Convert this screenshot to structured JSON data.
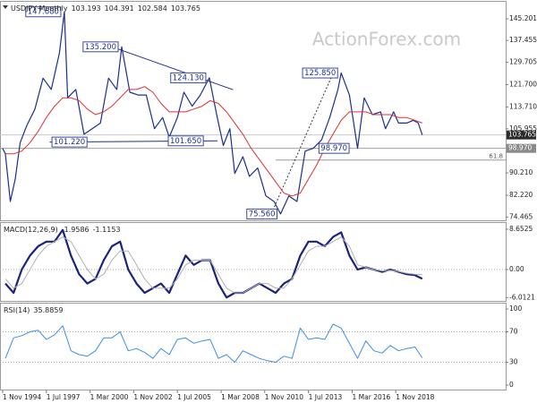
{
  "chart_data": [
    {
      "type": "line",
      "title": "USDJPY Monthly",
      "readout": [
        103.193,
        104.391,
        102.584,
        103.765
      ],
      "watermark": "ActionForex.com",
      "xlim": [
        1994.67,
        2025.54
      ],
      "ylim": [
        73.3,
        150.95
      ],
      "yticks": [
        145.201,
        137.455,
        129.705,
        {
          "value": 121.7,
          "label": "121.700"
        },
        {
          "value": 113.71,
          "label": "113.710"
        },
        105.955,
        {
          "value": 90.21,
          "label": "90.210"
        },
        {
          "value": 82.22,
          "label": "82.220"
        },
        74.465
      ],
      "series": [
        {
          "color": "#1c2f8c",
          "width": 1.2,
          "x": [
            1994.83,
            1995.0,
            1995.3,
            1995.6,
            1995.9,
            1996.3,
            1996.8,
            1997.3,
            1997.8,
            1998.3,
            1998.6,
            1998.8,
            1999.3,
            1999.8,
            2000.3,
            2000.8,
            2001.3,
            2001.8,
            2002.1,
            2002.6,
            2003.1,
            2003.6,
            2004.1,
            2004.6,
            2005.0,
            2005.5,
            2005.9,
            2006.4,
            2006.9,
            2007.45,
            2007.9,
            2008.3,
            2008.7,
            2009.0,
            2009.5,
            2009.9,
            2010.4,
            2010.9,
            2011.4,
            2011.8,
            2012.3,
            2012.8,
            2013.3,
            2013.8,
            2014.3,
            2014.8,
            2015.3,
            2015.5,
            2016.0,
            2016.5,
            2016.9,
            2017.4,
            2017.9,
            2018.2,
            2018.7,
            2019.0,
            2019.5,
            2019.9,
            2020.2,
            2020.45
          ],
          "values": [
            99,
            97,
            80,
            88,
            101,
            107,
            113,
            124,
            120,
            133,
            147.68,
            117,
            120,
            104,
            106,
            108,
            124,
            120,
            135.2,
            119,
            118,
            118,
            106,
            110,
            103,
            110,
            119,
            114,
            118,
            124.13,
            111,
            100,
            106,
            90,
            96,
            89,
            92,
            82,
            80,
            75.56,
            82,
            80,
            98,
            99,
            102,
            110,
            120,
            125.85,
            118,
            99,
            117,
            111,
            112,
            106,
            112,
            108,
            108,
            109,
            108,
            103.765
          ]
        },
        {
          "color": "#e03030",
          "width": 1,
          "x": [
            1995.0,
            1995.5,
            1996.0,
            1996.5,
            1997.0,
            1997.5,
            1998.0,
            1998.5,
            1999.0,
            1999.5,
            2000.0,
            2000.5,
            2001.0,
            2001.5,
            2002.0,
            2002.5,
            2003.0,
            2003.5,
            2004.0,
            2004.5,
            2005.0,
            2005.5,
            2006.0,
            2006.5,
            2007.0,
            2007.5,
            2008.0,
            2008.5,
            2009.0,
            2009.5,
            2010.0,
            2010.5,
            2011.0,
            2011.5,
            2012.0,
            2012.5,
            2013.0,
            2013.5,
            2014.0,
            2014.5,
            2015.0,
            2015.5,
            2016.0,
            2016.5,
            2017.0,
            2017.5,
            2018.0,
            2018.5,
            2019.0,
            2019.5,
            2020.0,
            2020.45
          ],
          "values": [
            97,
            97,
            98,
            101,
            105,
            110,
            114,
            117,
            117,
            116,
            113,
            111,
            112,
            114,
            117,
            120,
            120,
            121,
            119,
            115,
            112,
            112,
            112,
            113,
            114,
            116,
            115,
            112,
            108,
            104,
            99,
            95,
            91,
            87,
            83,
            82,
            83,
            88,
            93,
            99,
            104,
            109,
            112,
            112,
            112,
            111,
            111,
            111,
            110,
            110,
            109,
            108
          ]
        }
      ],
      "hlines": [
        {
          "value": 103.765,
          "color": "#c8c8c8"
        },
        {
          "value": 98.97,
          "color": "#a0a0a0"
        }
      ],
      "fib": {
        "level": 61.8,
        "value": 94.8,
        "from": 2011.5,
        "color": "#9a9a9a"
      },
      "trendlines": [
        {
          "x": [
            1997.7,
            2007.95
          ],
          "y": [
            101.22,
            101.65
          ],
          "color": "#1c2f8c",
          "style": "solid"
        },
        {
          "x": [
            2001.5,
            2008.9
          ],
          "y": [
            135.2,
            119.9
          ],
          "color": "#1c2f8c",
          "style": "solid"
        },
        {
          "x": [
            2011.33,
            2014.9
          ],
          "y": [
            76.9,
            124.4
          ],
          "color": "#333333",
          "style": "dotted"
        }
      ],
      "annotations": [
        {
          "x": 1998.6,
          "value": 147.68,
          "label": "147.680"
        },
        {
          "x": 2002.1,
          "value": 135.2,
          "label": "135.200"
        },
        {
          "x": 2007.45,
          "value": 124.13,
          "label": "124.130"
        },
        {
          "x": 2015.5,
          "value": 125.85,
          "label": "125.850"
        },
        {
          "x": 2000.2,
          "value": 101.22,
          "label": "101.220"
        },
        {
          "x": 2007.3,
          "value": 101.65,
          "label": "101.650"
        },
        {
          "x": 2016.2,
          "value": 98.97,
          "label": "98.970"
        },
        {
          "x": 2011.8,
          "value": 75.56,
          "label": "75.560"
        }
      ],
      "price_tags": [
        {
          "value": 103.765,
          "label": "103.765",
          "color": "#2b2b2b"
        },
        {
          "value": 98.97,
          "label": "98.970",
          "color": "#8a8a8a"
        }
      ]
    },
    {
      "type": "line",
      "title": "MACD(12,26,9)",
      "readout": [
        -1.9586,
        -1.1153
      ],
      "xlim": [
        1994.67,
        2025.54
      ],
      "ylim": [
        -6.73,
        9.8
      ],
      "yticks": [
        8.6525,
        {
          "value": 0,
          "label": "0.00"
        },
        -6.0121
      ],
      "levels": [
        0
      ],
      "series": [
        {
          "color": "#1a237e",
          "width": 2.2,
          "x": [
            1995.0,
            1995.5,
            1996.0,
            1996.5,
            1997.0,
            1997.5,
            1998.0,
            1998.5,
            1999.0,
            1999.5,
            2000.0,
            2000.5,
            2001.0,
            2001.5,
            2002.0,
            2002.5,
            2003.0,
            2003.5,
            2004.0,
            2004.5,
            2005.0,
            2005.5,
            2006.0,
            2006.5,
            2007.0,
            2007.5,
            2008.0,
            2008.5,
            2009.0,
            2009.5,
            2010.0,
            2010.5,
            2011.0,
            2011.5,
            2012.0,
            2012.5,
            2013.0,
            2013.5,
            2014.0,
            2014.5,
            2015.0,
            2015.5,
            2016.0,
            2016.5,
            2017.0,
            2017.5,
            2018.0,
            2018.5,
            2019.0,
            2019.5,
            2020.0,
            2020.45
          ],
          "values": [
            -3,
            -5,
            0,
            3,
            5,
            6,
            6,
            8.5,
            3,
            -1,
            -3,
            -2,
            2,
            5,
            6,
            0,
            -3,
            -5,
            -4,
            -3,
            -5,
            -1,
            3,
            1,
            2,
            2,
            -3,
            -6,
            -5,
            -5,
            -4,
            -3,
            -4,
            -5,
            -3,
            -2,
            3,
            6,
            6,
            5,
            7,
            8,
            3,
            0,
            0.5,
            0,
            -0.5,
            0,
            -0.5,
            -1,
            -1.2,
            -1.9586
          ]
        },
        {
          "color": "#b0b0b0",
          "width": 1,
          "x": [
            1995.0,
            1995.5,
            1996.0,
            1996.5,
            1997.0,
            1997.5,
            1998.0,
            1998.5,
            1999.0,
            1999.5,
            2000.0,
            2000.5,
            2001.0,
            2001.5,
            2002.0,
            2002.5,
            2003.0,
            2003.5,
            2004.0,
            2004.5,
            2005.0,
            2005.5,
            2006.0,
            2006.5,
            2007.0,
            2007.5,
            2008.0,
            2008.5,
            2009.0,
            2009.5,
            2010.0,
            2010.5,
            2011.0,
            2011.5,
            2012.0,
            2012.5,
            2013.0,
            2013.5,
            2014.0,
            2014.5,
            2015.0,
            2015.5,
            2016.0,
            2016.5,
            2017.0,
            2017.5,
            2018.0,
            2018.5,
            2019.0,
            2019.5,
            2020.0,
            2020.45
          ],
          "values": [
            -2,
            -4,
            -3,
            0,
            3,
            5,
            6,
            7,
            6,
            3,
            0,
            -2,
            -1,
            2,
            4,
            4,
            1,
            -2,
            -4,
            -4,
            -4,
            -2,
            1,
            2,
            2,
            2,
            -1,
            -4,
            -5,
            -5,
            -4,
            -3,
            -3,
            -4,
            -4,
            -2,
            1,
            4,
            5,
            5,
            6,
            7,
            5,
            1,
            0.5,
            0,
            -0.3,
            -0.2,
            -0.4,
            -0.8,
            -1.0,
            -1.1153
          ]
        }
      ]
    },
    {
      "type": "line",
      "title": "RSI(14)",
      "readout": [
        35.8859
      ],
      "xlim": [
        1994.67,
        2025.54
      ],
      "ylim": [
        -5.9,
        105.9
      ],
      "yticks": [
        100,
        70,
        30,
        0
      ],
      "levels": [
        70,
        30
      ],
      "series": [
        {
          "color": "#3a8ee6",
          "width": 1,
          "x": [
            1995.0,
            1995.5,
            1996.0,
            1996.5,
            1997.0,
            1997.5,
            1998.0,
            1998.5,
            1999.0,
            1999.5,
            2000.0,
            2000.5,
            2001.0,
            2001.5,
            2002.0,
            2002.5,
            2003.0,
            2003.5,
            2004.0,
            2004.5,
            2005.0,
            2005.5,
            2006.0,
            2006.5,
            2007.0,
            2007.5,
            2008.0,
            2008.5,
            2009.0,
            2009.5,
            2010.0,
            2010.5,
            2011.0,
            2011.5,
            2012.0,
            2012.5,
            2013.0,
            2013.5,
            2014.0,
            2014.5,
            2015.0,
            2015.5,
            2016.0,
            2016.5,
            2017.0,
            2017.5,
            2018.0,
            2018.5,
            2019.0,
            2019.5,
            2020.0,
            2020.45
          ],
          "values": [
            35,
            62,
            65,
            70,
            72,
            60,
            66,
            78,
            45,
            40,
            38,
            45,
            62,
            62,
            70,
            45,
            48,
            43,
            35,
            48,
            40,
            60,
            62,
            55,
            58,
            60,
            35,
            40,
            30,
            45,
            40,
            35,
            32,
            30,
            38,
            35,
            75,
            60,
            62,
            60,
            80,
            75,
            55,
            35,
            58,
            45,
            42,
            52,
            45,
            48,
            50,
            35.8859
          ]
        }
      ],
      "xticks": [
        {
          "value": 1994.83,
          "label": "1 Nov 1994"
        },
        {
          "value": 1997.5,
          "label": "1 Jul 1997"
        },
        {
          "value": 2000.17,
          "label": "1 Mar 2000"
        },
        {
          "value": 2002.83,
          "label": "1 Nov 2002"
        },
        {
          "value": 2005.5,
          "label": "1 Jul 2005"
        },
        {
          "value": 2008.17,
          "label": "1 Mar 2008"
        },
        {
          "value": 2010.83,
          "label": "1 Nov 2010"
        },
        {
          "value": 2013.5,
          "label": "1 Jul 2013"
        },
        {
          "value": 2016.17,
          "label": "1 Mar 2016"
        },
        {
          "value": 2018.83,
          "label": "1 Nov 2018"
        }
      ]
    }
  ]
}
